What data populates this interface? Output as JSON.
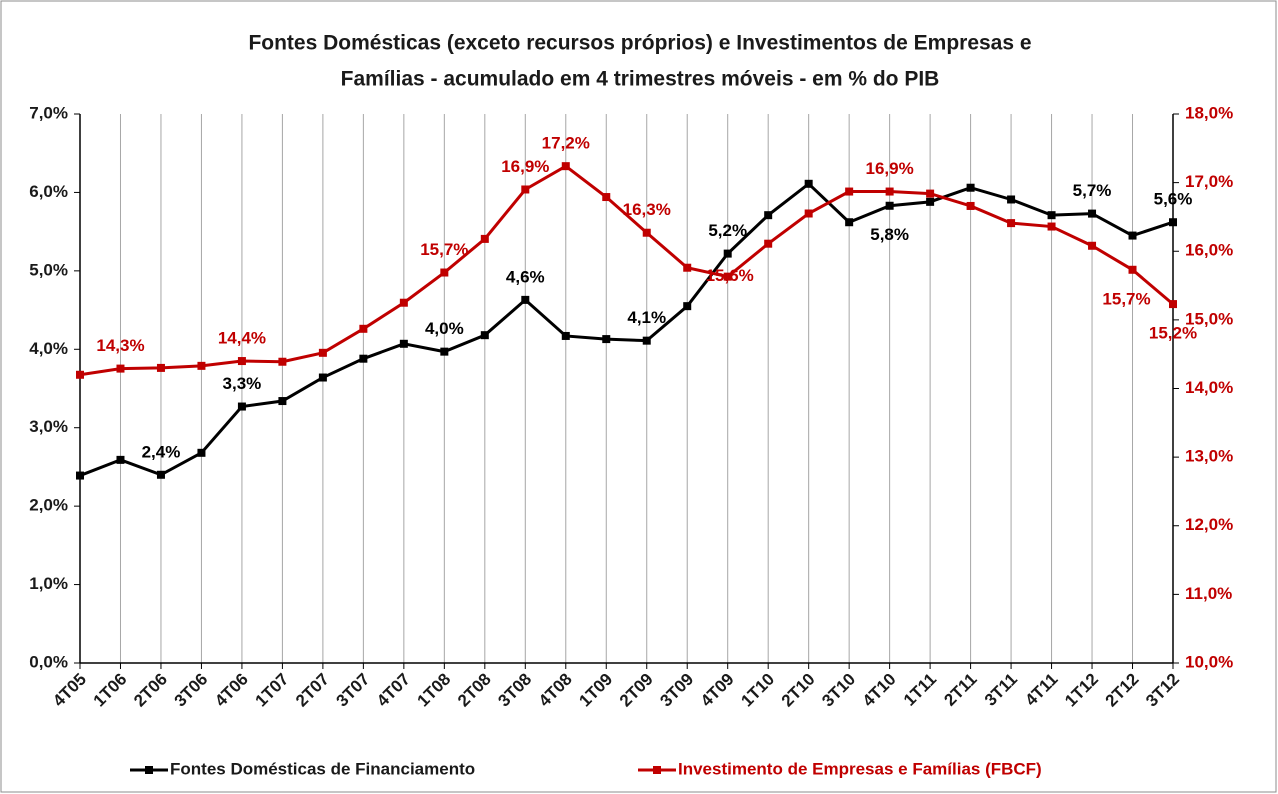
{
  "chart_data": {
    "type": "line",
    "title": [
      "Fontes Domésticas (exceto recursos próprios) e Investimentos de Empresas e",
      "Famílias - acumulado em 4 trimestres móveis - em % do PIB"
    ],
    "categories": [
      "4T05",
      "1T06",
      "2T06",
      "3T06",
      "4T06",
      "1T07",
      "2T07",
      "3T07",
      "4T07",
      "1T08",
      "2T08",
      "3T08",
      "4T08",
      "1T09",
      "2T09",
      "3T09",
      "4T09",
      "1T10",
      "2T10",
      "3T10",
      "4T10",
      "1T11",
      "2T11",
      "3T11",
      "4T11",
      "1T12",
      "2T12",
      "3T12"
    ],
    "series": [
      {
        "name": "Fontes Domésticas de Financiamento",
        "color": "#000000",
        "axis": "y",
        "values": [
          2.39,
          2.59,
          2.4,
          2.68,
          3.27,
          3.34,
          3.64,
          3.88,
          4.07,
          3.97,
          4.18,
          4.63,
          4.17,
          4.13,
          4.11,
          4.55,
          5.22,
          5.71,
          6.11,
          5.62,
          5.83,
          5.88,
          6.06,
          5.91,
          5.71,
          5.73,
          5.45,
          5.62
        ],
        "value_labels": [
          null,
          null,
          "2,4%",
          null,
          "3,3%",
          null,
          null,
          null,
          null,
          "4,0%",
          null,
          "4,6%",
          null,
          null,
          "4,1%",
          null,
          "5,2%",
          null,
          null,
          null,
          "5,8%",
          null,
          null,
          null,
          null,
          "5,7%",
          null,
          "5,6%"
        ]
      },
      {
        "name": "Investimento de Empresas e Famílias (FBCF)",
        "color": "#c00000",
        "axis": "y2",
        "values": [
          14.2,
          14.29,
          14.3,
          14.33,
          14.4,
          14.39,
          14.52,
          14.87,
          15.25,
          15.69,
          16.18,
          16.9,
          17.24,
          16.79,
          16.27,
          15.76,
          15.63,
          16.11,
          16.55,
          16.87,
          16.87,
          16.84,
          16.66,
          16.41,
          16.36,
          16.08,
          15.73,
          15.23
        ],
        "value_labels": [
          null,
          "14,3%",
          null,
          null,
          "14,4%",
          null,
          null,
          null,
          null,
          "15,7%",
          null,
          "16,9%",
          "17,2%",
          null,
          "16,3%",
          null,
          "15,6%",
          null,
          null,
          null,
          "16,9%",
          null,
          null,
          null,
          null,
          null,
          "15,7%",
          "15,2%"
        ]
      }
    ],
    "ylim": [
      0,
      7
    ],
    "yticks": [
      {
        "value": 0,
        "label": "0,0%"
      },
      {
        "value": 1,
        "label": "1,0%"
      },
      {
        "value": 2,
        "label": "2,0%"
      },
      {
        "value": 3,
        "label": "3,0%"
      },
      {
        "value": 4,
        "label": "4,0%"
      },
      {
        "value": 5,
        "label": "5,0%"
      },
      {
        "value": 6,
        "label": "6,0%"
      },
      {
        "value": 7,
        "label": "7,0%"
      }
    ],
    "y2lim": [
      10,
      18
    ],
    "y2ticks": [
      {
        "value": 10,
        "label": "10,0%"
      },
      {
        "value": 11,
        "label": "11,0%"
      },
      {
        "value": 12,
        "label": "12,0%"
      },
      {
        "value": 13,
        "label": "13,0%"
      },
      {
        "value": 14,
        "label": "14,0%"
      },
      {
        "value": 15,
        "label": "15,0%"
      },
      {
        "value": 16,
        "label": "16,0%"
      },
      {
        "value": 17,
        "label": "17,0%"
      },
      {
        "value": 18,
        "label": "18,0%"
      }
    ],
    "grid": "x",
    "legend": "bottom"
  }
}
